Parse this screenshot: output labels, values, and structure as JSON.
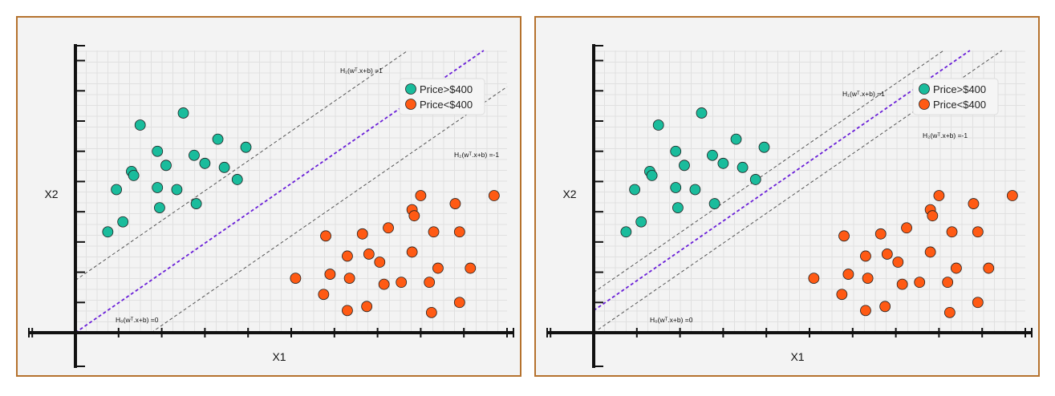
{
  "colors": {
    "class_high": "#1abc9c",
    "class_low": "#ff5a14",
    "hyperplane": "#6a1fd8",
    "margin": "#555555",
    "panel_border": "#b5722e",
    "panel_bg": "#f3f3f3"
  },
  "chart_data": [
    {
      "type": "scatter",
      "title": "",
      "xlabel": "X1",
      "ylabel": "X2",
      "xlim": [
        0,
        20
      ],
      "ylim": [
        0,
        14
      ],
      "grid": true,
      "legend_position": "top-right",
      "legend": [
        "Price>$400",
        "Price<$400"
      ],
      "equations": {
        "h1": "H₁(wᵀ.x+b) =1",
        "h2": "H₂(wᵀ.x+b) =-1",
        "h0": "H₀(wᵀ.x+b) =0"
      },
      "lines": {
        "h0": {
          "intercept": 0.0,
          "slope": 0.74
        },
        "h1": {
          "intercept": 2.6,
          "slope": 0.74
        },
        "h2": {
          "intercept": -2.6,
          "slope": 0.74
        }
      },
      "series": [
        {
          "name": "Price>$400",
          "color": "#1abc9c",
          "points": [
            [
              1.5,
              5.0
            ],
            [
              1.9,
              7.1
            ],
            [
              2.2,
              5.5
            ],
            [
              2.6,
              8.0
            ],
            [
              2.7,
              7.8
            ],
            [
              3.0,
              10.3
            ],
            [
              3.8,
              9.0
            ],
            [
              3.8,
              7.2
            ],
            [
              3.9,
              6.2
            ],
            [
              4.2,
              8.3
            ],
            [
              4.7,
              7.1
            ],
            [
              5.0,
              10.9
            ],
            [
              5.6,
              6.4
            ],
            [
              5.5,
              8.8
            ],
            [
              6.0,
              8.4
            ],
            [
              6.6,
              9.6
            ],
            [
              6.9,
              8.2
            ],
            [
              7.5,
              7.6
            ],
            [
              7.9,
              9.2
            ]
          ]
        },
        {
          "name": "Price<$400",
          "color": "#ff5a14",
          "points": [
            [
              10.2,
              2.7
            ],
            [
              11.6,
              4.8
            ],
            [
              11.5,
              1.9
            ],
            [
              11.8,
              2.9
            ],
            [
              12.6,
              3.8
            ],
            [
              12.6,
              1.1
            ],
            [
              12.7,
              2.7
            ],
            [
              13.3,
              4.9
            ],
            [
              13.5,
              1.3
            ],
            [
              13.6,
              3.9
            ],
            [
              14.1,
              3.5
            ],
            [
              14.3,
              2.4
            ],
            [
              14.5,
              5.2
            ],
            [
              15.1,
              2.5
            ],
            [
              15.6,
              6.1
            ],
            [
              15.6,
              4.0
            ],
            [
              15.7,
              5.8
            ],
            [
              16.0,
              6.8
            ],
            [
              16.4,
              2.5
            ],
            [
              16.5,
              1.0
            ],
            [
              16.6,
              5.0
            ],
            [
              16.8,
              3.2
            ],
            [
              17.6,
              6.4
            ],
            [
              17.8,
              1.5
            ],
            [
              17.8,
              5.0
            ],
            [
              18.3,
              3.2
            ],
            [
              19.4,
              6.8
            ]
          ]
        }
      ]
    },
    {
      "type": "scatter",
      "title": "",
      "xlabel": "X1",
      "ylabel": "X2",
      "xlim": [
        0,
        20
      ],
      "ylim": [
        0,
        14
      ],
      "grid": true,
      "legend_position": "top-right",
      "legend": [
        "Price>$400",
        "Price<$400"
      ],
      "equations": {
        "h1": "H₁(wᵀ.x+b) =1",
        "h2": "H₂(wᵀ.x+b) =-1",
        "h0": "H₀(wᵀ.x+b) =0"
      },
      "lines": {
        "h0": {
          "intercept": 1.1,
          "slope": 0.74
        },
        "h1": {
          "intercept": 2.0,
          "slope": 0.74
        },
        "h2": {
          "intercept": 0.0,
          "slope": 0.74
        }
      },
      "series": [
        {
          "name": "Price>$400",
          "color": "#1abc9c",
          "points": [
            [
              1.5,
              5.0
            ],
            [
              1.9,
              7.1
            ],
            [
              2.2,
              5.5
            ],
            [
              2.6,
              8.0
            ],
            [
              2.7,
              7.8
            ],
            [
              3.0,
              10.3
            ],
            [
              3.8,
              9.0
            ],
            [
              3.8,
              7.2
            ],
            [
              3.9,
              6.2
            ],
            [
              4.2,
              8.3
            ],
            [
              4.7,
              7.1
            ],
            [
              5.0,
              10.9
            ],
            [
              5.6,
              6.4
            ],
            [
              5.5,
              8.8
            ],
            [
              6.0,
              8.4
            ],
            [
              6.6,
              9.6
            ],
            [
              6.9,
              8.2
            ],
            [
              7.5,
              7.6
            ],
            [
              7.9,
              9.2
            ]
          ]
        },
        {
          "name": "Price<$400",
          "color": "#ff5a14",
          "points": [
            [
              10.2,
              2.7
            ],
            [
              11.6,
              4.8
            ],
            [
              11.5,
              1.9
            ],
            [
              11.8,
              2.9
            ],
            [
              12.6,
              3.8
            ],
            [
              12.6,
              1.1
            ],
            [
              12.7,
              2.7
            ],
            [
              13.3,
              4.9
            ],
            [
              13.5,
              1.3
            ],
            [
              13.6,
              3.9
            ],
            [
              14.1,
              3.5
            ],
            [
              14.3,
              2.4
            ],
            [
              14.5,
              5.2
            ],
            [
              15.1,
              2.5
            ],
            [
              15.6,
              6.1
            ],
            [
              15.6,
              4.0
            ],
            [
              15.7,
              5.8
            ],
            [
              16.0,
              6.8
            ],
            [
              16.4,
              2.5
            ],
            [
              16.5,
              1.0
            ],
            [
              16.6,
              5.0
            ],
            [
              16.8,
              3.2
            ],
            [
              17.6,
              6.4
            ],
            [
              17.8,
              1.5
            ],
            [
              17.8,
              5.0
            ],
            [
              18.3,
              3.2
            ],
            [
              19.4,
              6.8
            ]
          ]
        }
      ]
    }
  ]
}
